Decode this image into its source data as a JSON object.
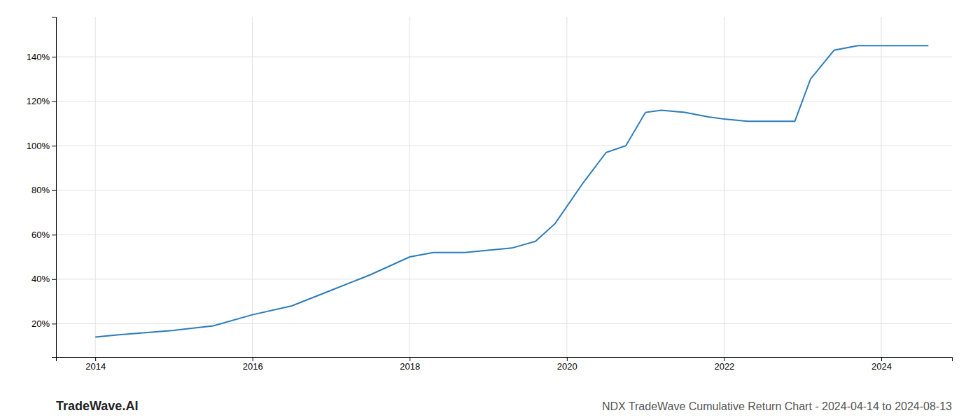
{
  "chart_data": {
    "type": "line",
    "title": "NDX TradeWave Cumulative Return Chart - 2024-04-14 to 2024-08-13",
    "annotations": [
      "TradeWave.AI"
    ],
    "x": [
      2014.0,
      2014.3,
      2015.0,
      2015.5,
      2016.0,
      2016.5,
      2017.0,
      2017.5,
      2018.0,
      2018.3,
      2018.7,
      2019.0,
      2019.3,
      2019.6,
      2019.85,
      2020.2,
      2020.5,
      2020.75,
      2021.0,
      2021.2,
      2021.5,
      2021.8,
      2022.0,
      2022.3,
      2022.6,
      2022.9,
      2023.1,
      2023.4,
      2023.7,
      2024.0,
      2024.3,
      2024.6
    ],
    "values": [
      14,
      15,
      17,
      19,
      24,
      28,
      35,
      42,
      50,
      52,
      52,
      53,
      54,
      57,
      65,
      83,
      97,
      100,
      115,
      116,
      115,
      113,
      112,
      111,
      111,
      111,
      130,
      143,
      145,
      145,
      145,
      145
    ],
    "color": "#2b7bba",
    "xlim": [
      2013.5,
      2024.9
    ],
    "ylim": [
      5,
      158
    ],
    "xticks": [
      2014,
      2016,
      2018,
      2020,
      2022,
      2024
    ],
    "yticks": [
      {
        "value": 20,
        "label": "20%"
      },
      {
        "value": 40,
        "label": "40%"
      },
      {
        "value": 60,
        "label": "60%"
      },
      {
        "value": 80,
        "label": "80%"
      },
      {
        "value": 100,
        "label": "100%"
      },
      {
        "value": 120,
        "label": "120%"
      },
      {
        "value": 140,
        "label": "140%"
      }
    ],
    "grid": true
  }
}
